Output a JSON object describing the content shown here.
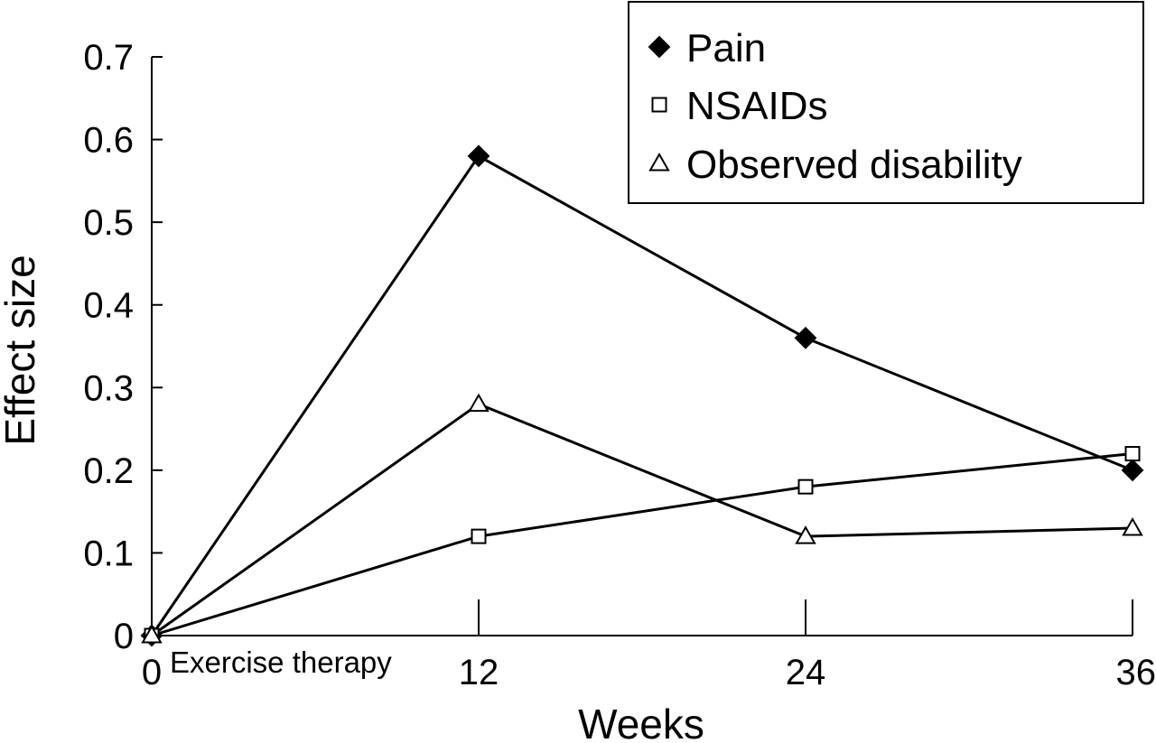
{
  "chart_data": {
    "type": "line",
    "title": "",
    "xlabel": "Weeks",
    "ylabel": "Effect size",
    "x": [
      0,
      12,
      24,
      36
    ],
    "xlim": [
      0,
      36
    ],
    "ylim": [
      0,
      0.7
    ],
    "y_ticks": [
      "0",
      "0.1",
      "0.2",
      "0.3",
      "0.4",
      "0.5",
      "0.6",
      "0.7"
    ],
    "x_ticks": [
      "0",
      "12",
      "24",
      "36"
    ],
    "grid": false,
    "legend_position": "top-right",
    "annotation": "Exercise therapy",
    "series": [
      {
        "name": "Pain",
        "marker": "filled-diamond",
        "values": [
          0,
          0.58,
          0.36,
          0.2
        ]
      },
      {
        "name": "NSAIDs",
        "marker": "open-square",
        "values": [
          0,
          0.12,
          0.18,
          0.22
        ]
      },
      {
        "name": "Observed disability",
        "marker": "open-triangle",
        "values": [
          0,
          0.28,
          0.12,
          0.13
        ]
      }
    ]
  }
}
